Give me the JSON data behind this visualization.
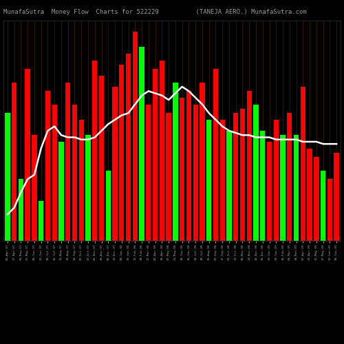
{
  "title": "MunafaSutra  Money Flow  Charts for 522229          (TANEJA AERO.) MunafaSutra.com",
  "background_color": "#000000",
  "bar_colors": [
    "#00ff00",
    "#ff0000",
    "#00ff00",
    "#ff0000",
    "#ff0000",
    "#00ff00",
    "#ff0000",
    "#ff0000",
    "#00ff00",
    "#ff0000",
    "#ff0000",
    "#ff0000",
    "#00ff00",
    "#ff0000",
    "#ff0000",
    "#00ff00",
    "#ff0000",
    "#ff0000",
    "#ff0000",
    "#ff0000",
    "#00ff00",
    "#ff0000",
    "#ff0000",
    "#ff0000",
    "#ff0000",
    "#00ff00",
    "#ff0000",
    "#ff0000",
    "#ff0000",
    "#ff0000",
    "#00ff00",
    "#ff0000",
    "#ff0000",
    "#00ff00",
    "#ff0000",
    "#ff0000",
    "#ff0000",
    "#00ff00",
    "#00ff00",
    "#ff0000",
    "#ff0000",
    "#00ff00",
    "#ff0000",
    "#00ff00",
    "#ff0000",
    "#ff0000",
    "#ff0000",
    "#00ff00",
    "#ff0000",
    "#ff0000"
  ],
  "bar_heights": [
    0.58,
    0.72,
    0.28,
    0.78,
    0.48,
    0.18,
    0.68,
    0.62,
    0.45,
    0.72,
    0.62,
    0.55,
    0.48,
    0.82,
    0.75,
    0.32,
    0.7,
    0.8,
    0.85,
    0.95,
    0.88,
    0.62,
    0.78,
    0.82,
    0.58,
    0.72,
    0.65,
    0.68,
    0.62,
    0.72,
    0.55,
    0.78,
    0.55,
    0.5,
    0.58,
    0.6,
    0.68,
    0.62,
    0.5,
    0.45,
    0.55,
    0.48,
    0.58,
    0.48,
    0.7,
    0.42,
    0.38,
    0.32,
    0.28,
    0.4
  ],
  "line_color": "#ffffff",
  "line_values": [
    0.12,
    0.15,
    0.22,
    0.28,
    0.3,
    0.42,
    0.5,
    0.52,
    0.48,
    0.47,
    0.47,
    0.46,
    0.46,
    0.47,
    0.5,
    0.53,
    0.55,
    0.57,
    0.58,
    0.62,
    0.66,
    0.68,
    0.67,
    0.66,
    0.64,
    0.67,
    0.7,
    0.68,
    0.65,
    0.62,
    0.58,
    0.55,
    0.52,
    0.5,
    0.49,
    0.48,
    0.48,
    0.47,
    0.47,
    0.47,
    0.46,
    0.46,
    0.46,
    0.46,
    0.45,
    0.45,
    0.45,
    0.44,
    0.44,
    0.44
  ],
  "x_labels": [
    "01-Apr-07",
    "17-Apr-07",
    "03-May-07",
    "21-May-07",
    "06-Jun-07",
    "22-Jun-07",
    "10-Jul-07",
    "26-Jul-07",
    "13-Aug-07",
    "29-Aug-07",
    "14-Sep-07",
    "01-Oct-07",
    "17-Oct-07",
    "02-Nov-07",
    "20-Nov-07",
    "06-Dec-07",
    "24-Dec-07",
    "09-Jan-08",
    "25-Jan-08",
    "12-Feb-08",
    "28-Feb-08",
    "17-Mar-08",
    "02-Apr-08",
    "18-Apr-08",
    "07-May-08",
    "23-May-08",
    "10-Jun-08",
    "26-Jun-08",
    "14-Jul-08",
    "30-Jul-08",
    "15-Aug-08",
    "01-Sep-08",
    "17-Sep-08",
    "03-Oct-08",
    "21-Oct-08",
    "06-Nov-08",
    "24-Nov-08",
    "10-Dec-08",
    "26-Dec-08",
    "13-Jan-09",
    "29-Jan-09",
    "16-Feb-09",
    "04-Mar-09",
    "20-Mar-09",
    "07-Apr-09",
    "23-Apr-09",
    "11-May-09",
    "27-May-09",
    "12-Jun-09",
    "30-Jun-09"
  ],
  "grid_color": "#3a1a00",
  "title_color": "#999999",
  "title_fontsize": 6.5,
  "ylim": [
    0,
    1.0
  ],
  "bar_width": 0.75
}
